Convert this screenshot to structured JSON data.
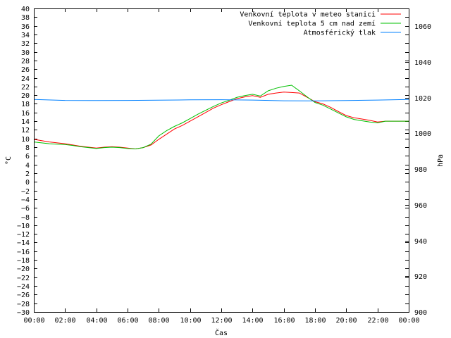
{
  "chart_data": {
    "type": "line",
    "xlabel": "Čas",
    "ylabel": "°C",
    "y2label": "hPa",
    "x_ticks": [
      "00:00",
      "02:00",
      "04:00",
      "06:00",
      "08:00",
      "10:00",
      "12:00",
      "14:00",
      "16:00",
      "18:00",
      "20:00",
      "22:00",
      "00:00"
    ],
    "xlim_hours": [
      0,
      24
    ],
    "ylim": [
      -30,
      40
    ],
    "y_step": 2,
    "y2lim": [
      900,
      1070
    ],
    "y2_ticks": [
      900,
      920,
      940,
      960,
      980,
      1000,
      1020,
      1040,
      1060
    ],
    "grid": false,
    "legend_position": "top-right",
    "series": [
      {
        "name": "Venkovní teplota v meteo stanici",
        "axis": "left",
        "color": "#ff0000",
        "x": [
          0,
          0.5,
          1,
          1.5,
          2,
          2.5,
          3,
          3.5,
          4,
          4.5,
          5,
          5.5,
          6,
          6.5,
          7,
          7.5,
          8,
          8.5,
          9,
          9.5,
          10,
          10.5,
          11,
          11.5,
          12,
          12.5,
          13,
          13.5,
          14,
          14.5,
          15,
          15.5,
          16,
          16.5,
          17,
          17.5,
          18,
          18.5,
          19,
          19.5,
          20,
          20.5,
          21,
          21.5,
          22,
          22.5,
          23,
          23.5,
          24
        ],
        "y": [
          9.8,
          9.5,
          9.2,
          9.0,
          8.8,
          8.5,
          8.2,
          8.0,
          7.8,
          8.0,
          8.1,
          8.0,
          7.8,
          7.6,
          7.9,
          8.5,
          9.8,
          11.0,
          12.2,
          13.0,
          14.0,
          15.0,
          16.0,
          17.0,
          17.8,
          18.5,
          19.2,
          19.6,
          19.9,
          19.5,
          20.2,
          20.5,
          20.7,
          20.6,
          20.5,
          19.5,
          18.5,
          18.0,
          17.2,
          16.2,
          15.3,
          14.8,
          14.5,
          14.2,
          13.8,
          14.0,
          14.0,
          14.0,
          14.0
        ]
      },
      {
        "name": "Venkovní teplota 5 cm nad zemí",
        "axis": "left",
        "color": "#00c000",
        "x": [
          0,
          0.5,
          1,
          1.5,
          2,
          2.5,
          3,
          3.5,
          4,
          4.5,
          5,
          5.5,
          6,
          6.5,
          7,
          7.5,
          8,
          8.5,
          9,
          9.5,
          10,
          10.5,
          11,
          11.5,
          12,
          12.5,
          13,
          13.5,
          14,
          14.5,
          15,
          15.5,
          16,
          16.5,
          17,
          17.5,
          18,
          18.5,
          19,
          19.5,
          20,
          20.5,
          21,
          21.5,
          22,
          22.5,
          23,
          23.5,
          24
        ],
        "y": [
          9.2,
          9.0,
          8.8,
          8.7,
          8.6,
          8.4,
          8.1,
          7.9,
          7.7,
          7.9,
          8.0,
          7.9,
          7.7,
          7.6,
          7.9,
          8.7,
          10.6,
          11.8,
          12.8,
          13.6,
          14.6,
          15.6,
          16.5,
          17.4,
          18.2,
          18.8,
          19.5,
          19.9,
          20.2,
          19.8,
          21.0,
          21.6,
          22.0,
          22.3,
          21.0,
          19.6,
          18.3,
          17.7,
          16.8,
          15.9,
          15.0,
          14.4,
          14.1,
          13.8,
          13.6,
          14.0,
          14.0,
          14.0,
          14.0
        ]
      },
      {
        "name": "Atmosférický tlak",
        "axis": "right",
        "color": "#0080ff",
        "x": [
          0,
          2,
          4,
          6,
          8,
          10,
          12,
          14,
          16,
          18,
          20,
          22,
          24
        ],
        "y": [
          1019.0,
          1018.5,
          1018.4,
          1018.5,
          1018.6,
          1018.8,
          1018.9,
          1018.7,
          1018.3,
          1018.2,
          1018.4,
          1018.7,
          1019.0
        ]
      }
    ]
  }
}
